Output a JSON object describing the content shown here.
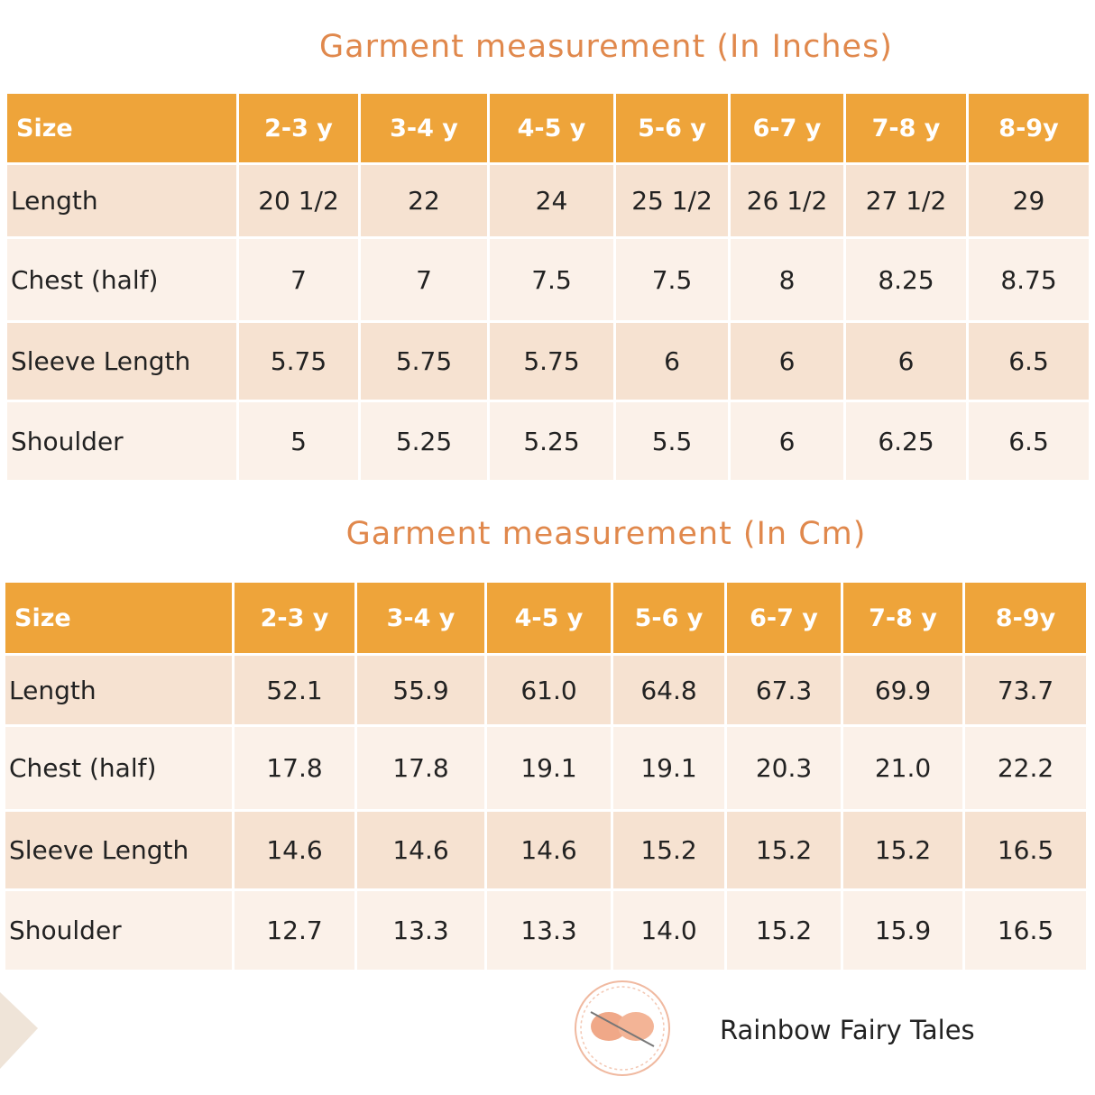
{
  "tables": [
    {
      "title": "Garment measurement (In Inches)",
      "header": [
        "Size",
        "2-3 y",
        "3-4 y",
        "4-5 y",
        "5-6 y",
        "6-7 y",
        "7-8 y",
        "8-9y"
      ],
      "rows": [
        [
          "Length",
          "20 1/2",
          "22",
          "24",
          "25 1/2",
          "26 1/2",
          "27 1/2",
          "29"
        ],
        [
          "Chest (half)",
          "7",
          "7",
          "7.5",
          "7.5",
          "8",
          "8.25",
          "8.75"
        ],
        [
          "Sleeve Length",
          "5.75",
          "5.75",
          "5.75",
          "6",
          "6",
          "6",
          "6.5"
        ],
        [
          "Shoulder",
          "5",
          "5.25",
          "5.25",
          "5.5",
          "6",
          "6.25",
          "6.5"
        ]
      ]
    },
    {
      "title": "Garment measurement (In Cm)",
      "header": [
        "Size",
        "2-3 y",
        "3-4 y",
        "4-5 y",
        "5-6 y",
        "6-7 y",
        "7-8 y",
        "8-9y"
      ],
      "rows": [
        [
          "Length",
          "52.1",
          "55.9",
          "61.0",
          "64.8",
          "67.3",
          "69.9",
          "73.7"
        ],
        [
          "Chest (half)",
          "17.8",
          "17.8",
          "19.1",
          "19.1",
          "20.3",
          "21.0",
          "22.2"
        ],
        [
          "Sleeve Length",
          "14.6",
          "14.6",
          "14.6",
          "15.2",
          "15.2",
          "15.2",
          "16.5"
        ],
        [
          "Shoulder",
          "12.7",
          "13.3",
          "13.3",
          "14.0",
          "15.2",
          "15.9",
          "16.5"
        ]
      ]
    }
  ],
  "brand": "Rainbow Fairy Tales"
}
